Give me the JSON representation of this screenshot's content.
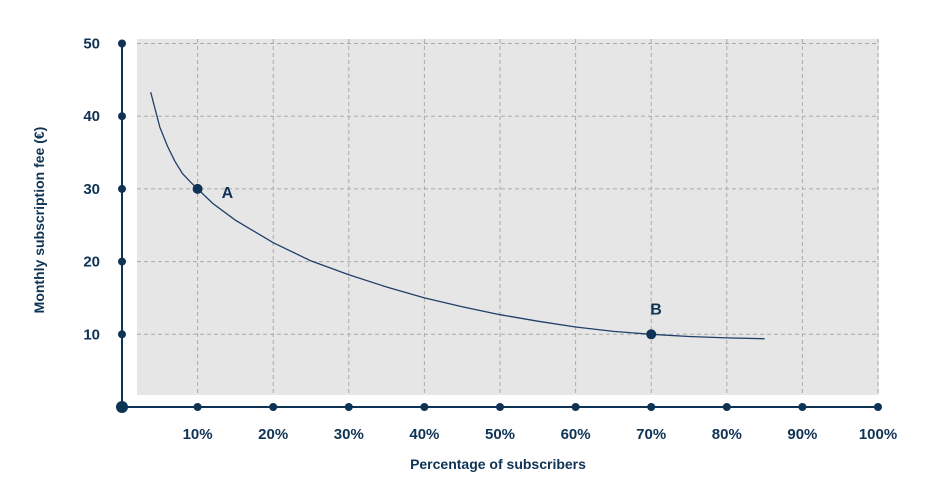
{
  "colors": {
    "ink": "#0f3354",
    "plot_background": "#e6e6e6",
    "grid": "#aaaaaa",
    "curve": "#1f3f68"
  },
  "chart_data": {
    "type": "line",
    "xlabel": "Percentage of subscribers",
    "ylabel": "Monthly subscription fee (€)",
    "xlim": [
      0,
      100
    ],
    "ylim": [
      0,
      50
    ],
    "x_ticks": [
      10,
      20,
      30,
      40,
      50,
      60,
      70,
      80,
      90,
      100
    ],
    "x_tick_labels": [
      "10%",
      "20%",
      "30%",
      "40%",
      "50%",
      "60%",
      "70%",
      "80%",
      "90%",
      "100%"
    ],
    "y_ticks": [
      10,
      20,
      30,
      40,
      50
    ],
    "y_tick_labels": [
      "10",
      "20",
      "30",
      "40",
      "50"
    ],
    "grid": true,
    "series": [
      {
        "x": [
          3.8,
          5,
          6,
          7,
          8,
          9,
          10,
          12,
          15,
          20,
          25,
          30,
          35,
          40,
          45,
          50,
          55,
          60,
          65,
          70,
          75,
          80,
          85
        ],
        "y": [
          43.3,
          38.5,
          35.9,
          33.8,
          32.1,
          31.0,
          30.0,
          28.0,
          25.7,
          22.6,
          20.1,
          18.2,
          16.5,
          15.0,
          13.8,
          12.7,
          11.8,
          11.0,
          10.4,
          10.0,
          9.7,
          9.5,
          9.4
        ]
      }
    ],
    "points": [
      {
        "label": "A",
        "x": 10,
        "y": 30
      },
      {
        "label": "B",
        "x": 70,
        "y": 10
      }
    ]
  }
}
